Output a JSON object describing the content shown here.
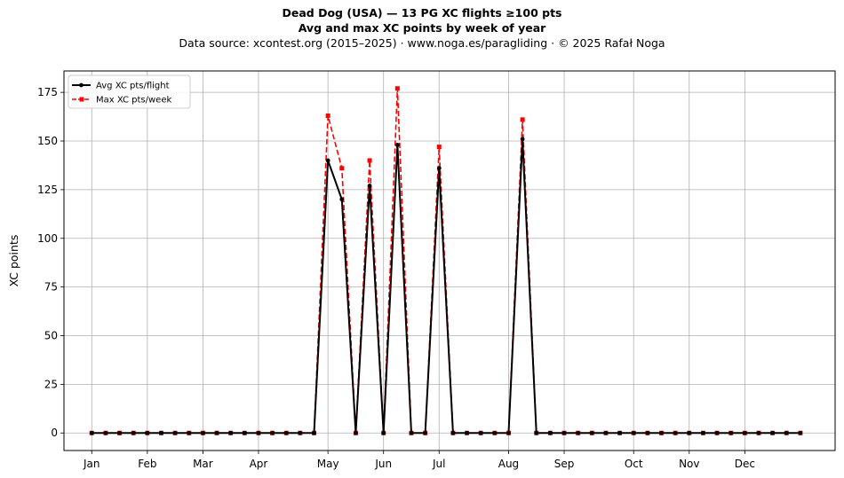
{
  "chart_data": {
    "type": "line",
    "title": "Dead Dog (USA)  —  13 PG XC flights ≥100 pts",
    "subtitle": "Avg and max XC points by week of year",
    "source": "Data source: xcontest.org (2015–2025)  ·  www.noga.es/paragliding  ·  © 2025 Rafał Noga",
    "xlabel": "",
    "ylabel": "XC points",
    "x_ticks": [
      {
        "label": "Jan",
        "week": 1
      },
      {
        "label": "Feb",
        "week": 5
      },
      {
        "label": "Mar",
        "week": 9
      },
      {
        "label": "Apr",
        "week": 13
      },
      {
        "label": "May",
        "week": 18
      },
      {
        "label": "Jun",
        "week": 22
      },
      {
        "label": "Jul",
        "week": 26
      },
      {
        "label": "Aug",
        "week": 31
      },
      {
        "label": "Sep",
        "week": 35
      },
      {
        "label": "Oct",
        "week": 40
      },
      {
        "label": "Nov",
        "week": 44
      },
      {
        "label": "Dec",
        "week": 48
      }
    ],
    "y_ticks": [
      0,
      25,
      50,
      75,
      100,
      125,
      150,
      175
    ],
    "xlim": [
      -1,
      54.5
    ],
    "ylim": [
      -9,
      186
    ],
    "grid": true,
    "legend_position": "top-left",
    "x": [
      1,
      2,
      3,
      4,
      5,
      6,
      7,
      8,
      9,
      10,
      11,
      12,
      13,
      14,
      15,
      16,
      17,
      18,
      19,
      20,
      21,
      22,
      23,
      24,
      25,
      26,
      27,
      28,
      29,
      30,
      31,
      32,
      33,
      34,
      35,
      36,
      37,
      38,
      39,
      40,
      41,
      42,
      43,
      44,
      45,
      46,
      47,
      48,
      49,
      50,
      51,
      52
    ],
    "series": [
      {
        "name": "Avg XC pts/flight",
        "color": "#000000",
        "style": "solid",
        "marker": "circle",
        "values": [
          0,
          0,
          0,
          0,
          0,
          0,
          0,
          0,
          0,
          0,
          0,
          0,
          0,
          0,
          0,
          0,
          0,
          140,
          120,
          0,
          127,
          0,
          148,
          0,
          0,
          136,
          0,
          0,
          0,
          0,
          0,
          151,
          0,
          0,
          0,
          0,
          0,
          0,
          0,
          0,
          0,
          0,
          0,
          0,
          0,
          0,
          0,
          0,
          0,
          0,
          0,
          0
        ]
      },
      {
        "name": "Max XC pts/week",
        "color": "#ff0000",
        "style": "dashed",
        "marker": "square",
        "values": [
          0,
          0,
          0,
          0,
          0,
          0,
          0,
          0,
          0,
          0,
          0,
          0,
          0,
          0,
          0,
          0,
          0,
          163,
          136,
          0,
          140,
          0,
          177,
          0,
          0,
          147,
          0,
          0,
          0,
          0,
          0,
          161,
          0,
          0,
          0,
          0,
          0,
          0,
          0,
          0,
          0,
          0,
          0,
          0,
          0,
          0,
          0,
          0,
          0,
          0,
          0,
          0
        ]
      }
    ]
  }
}
